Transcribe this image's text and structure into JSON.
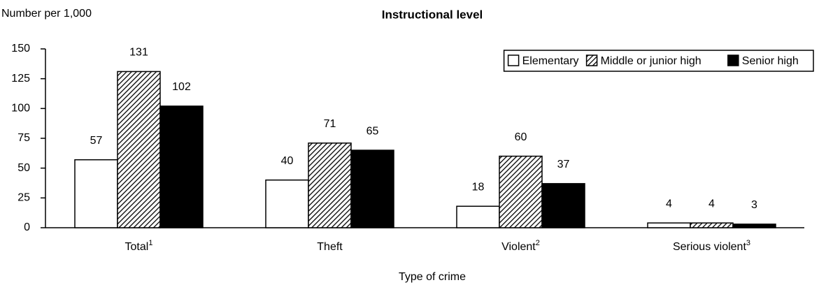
{
  "chart_data": {
    "type": "bar",
    "title": "Instructional level",
    "y_label": "Number per 1,000",
    "x_label": "Type of crime",
    "categories": [
      "Total",
      "Theft",
      "Violent",
      "Serious violent"
    ],
    "category_footnotes": [
      "1",
      null,
      "2",
      "3"
    ],
    "series": [
      {
        "name": "Elementary",
        "color": "#ffffff",
        "values": [
          57,
          40,
          18,
          4
        ]
      },
      {
        "name": "Middle or junior high",
        "color": "#000000",
        "pattern": "hatch",
        "values": [
          131,
          71,
          60,
          4
        ]
      },
      {
        "name": "Senior high",
        "color": "#000000",
        "values": [
          102,
          65,
          37,
          3
        ]
      }
    ],
    "ylim": [
      0,
      150
    ],
    "yticks": [
      0,
      25,
      50,
      75,
      100,
      125,
      150
    ],
    "legend": "upper right",
    "grid": false
  }
}
